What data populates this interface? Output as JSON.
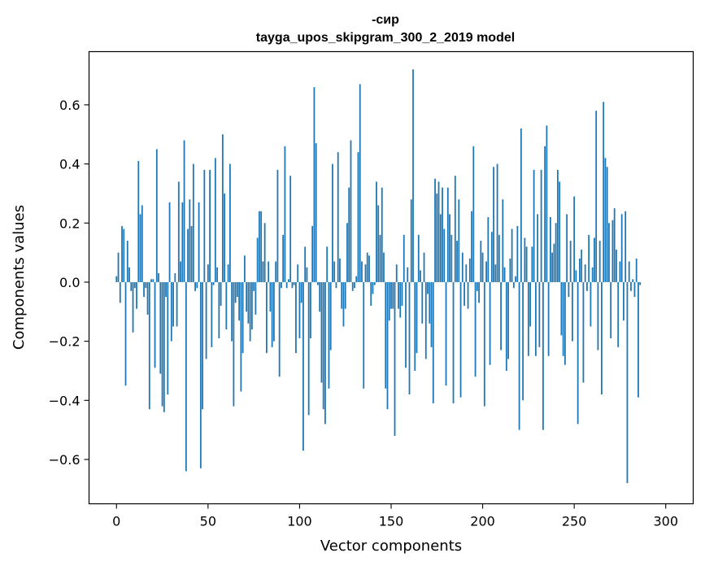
{
  "chart_data": {
    "type": "bar",
    "title": "-сир",
    "subtitle": "tayga_upos_skipgram_300_2_2019 model",
    "xlabel": "Vector components",
    "ylabel": "Components values",
    "xlim": [
      -15,
      315
    ],
    "ylim": [
      -0.75,
      0.78
    ],
    "x_ticks": [
      0,
      50,
      100,
      150,
      200,
      250,
      300
    ],
    "x_tick_labels": [
      "0",
      "50",
      "100",
      "150",
      "200",
      "250",
      "300"
    ],
    "y_ticks": [
      -0.6,
      -0.4,
      -0.2,
      0.0,
      0.2,
      0.4,
      0.6
    ],
    "y_tick_labels": [
      "−0.6",
      "−0.4",
      "−0.2",
      "0.0",
      "0.2",
      "0.4",
      "0.6"
    ],
    "bar_color": "#1f77b4",
    "grid": false,
    "values": [
      0.02,
      0.1,
      -0.07,
      0.19,
      0.18,
      -0.35,
      0.14,
      0.05,
      -0.03,
      -0.17,
      -0.02,
      -0.09,
      0.41,
      0.23,
      0.26,
      -0.05,
      -0.02,
      -0.11,
      -0.43,
      0.01,
      0.01,
      -0.29,
      0.45,
      0.03,
      -0.31,
      -0.42,
      -0.44,
      -0.05,
      -0.38,
      0.27,
      -0.2,
      -0.15,
      0.03,
      -0.15,
      0.34,
      0.07,
      0.27,
      0.48,
      -0.64,
      0.18,
      0.28,
      0.19,
      0.4,
      -0.03,
      -0.02,
      0.27,
      -0.63,
      -0.43,
      0.38,
      -0.26,
      0.06,
      0.38,
      -0.22,
      -0.01,
      0.42,
      0.05,
      -0.19,
      -0.08,
      0.5,
      0.3,
      -0.16,
      0.06,
      0.4,
      -0.2,
      -0.42,
      -0.07,
      -0.05,
      -0.13,
      -0.37,
      -0.24,
      0.09,
      -0.1,
      -0.14,
      -0.2,
      -0.16,
      -0.03,
      -0.11,
      0.15,
      0.24,
      0.24,
      0.07,
      0.2,
      -0.24,
      0.07,
      -0.1,
      -0.22,
      -0.2,
      0.07,
      0.38,
      -0.32,
      -0.02,
      0.16,
      0.46,
      -0.02,
      0.01,
      0.36,
      -0.02,
      -0.01,
      -0.24,
      0.06,
      -0.19,
      -0.07,
      -0.57,
      0.12,
      0.05,
      -0.45,
      -0.19,
      0.19,
      0.66,
      0.47,
      -0.01,
      -0.1,
      -0.34,
      -0.43,
      -0.48,
      0.12,
      -0.36,
      -0.23,
      0.4,
      0.07,
      -0.02,
      0.44,
      0.08,
      -0.09,
      -0.15,
      -0.09,
      0.2,
      0.32,
      0.48,
      -0.03,
      -0.02,
      0.02,
      0.44,
      0.67,
      0.07,
      -0.36,
      0.06,
      0.1,
      0.09,
      -0.08,
      -0.04,
      -0.01,
      0.34,
      0.26,
      0.16,
      0.32,
      0.1,
      -0.36,
      -0.43,
      -0.13,
      -0.09,
      -0.09,
      -0.52,
      0.06,
      -0.09,
      -0.12,
      -0.08,
      0.16,
      -0.29,
      0.05,
      -0.38,
      0.28,
      0.72,
      -0.3,
      -0.24,
      0.16,
      0.04,
      -0.14,
      0.1,
      -0.26,
      -0.04,
      -0.14,
      -0.22,
      -0.41,
      0.35,
      0.3,
      0.34,
      0.23,
      0.32,
      0.18,
      -0.35,
      0.32,
      0.23,
      0.16,
      -0.41,
      0.36,
      0.14,
      0.28,
      -0.39,
      0.1,
      -0.08,
      0.06,
      -0.09,
      0.08,
      0.24,
      0.46,
      -0.32,
      -0.03,
      -0.07,
      0.14,
      0.1,
      -0.42,
      0.07,
      0.22,
      -0.28,
      0.17,
      0.39,
      0.06,
      0.4,
      0.16,
      -0.23,
      0.28,
      0.05,
      -0.3,
      -0.26,
      0.08,
      0.18,
      -0.02,
      0.02,
      0.19,
      -0.5,
      0.52,
      -0.4,
      0.15,
      0.12,
      -0.25,
      -0.15,
      0.12,
      0.38,
      -0.25,
      0.23,
      -0.22,
      0.38,
      -0.5,
      0.46,
      0.53,
      -0.25,
      0.22,
      0.1,
      0.13,
      0.2,
      0.38,
      0.34,
      -0.18,
      -0.25,
      -0.28,
      0.23,
      -0.05,
      0.14,
      -0.2,
      0.29,
      0.04,
      -0.48,
      0.08,
      0.11,
      -0.34,
      0.06,
      -0.03,
      0.16,
      -0.15,
      0.05,
      0.15,
      0.58,
      -0.23,
      0.14,
      -0.38,
      0.61,
      0.42,
      0.39,
      0.2,
      -0.19,
      0.21,
      0.25,
      0.11,
      -0.22,
      0.07,
      0.23,
      -0.13,
      0.24,
      -0.68,
      0.07,
      -0.03,
      0.01,
      -0.05,
      0.08,
      -0.39,
      -0.01
    ]
  }
}
